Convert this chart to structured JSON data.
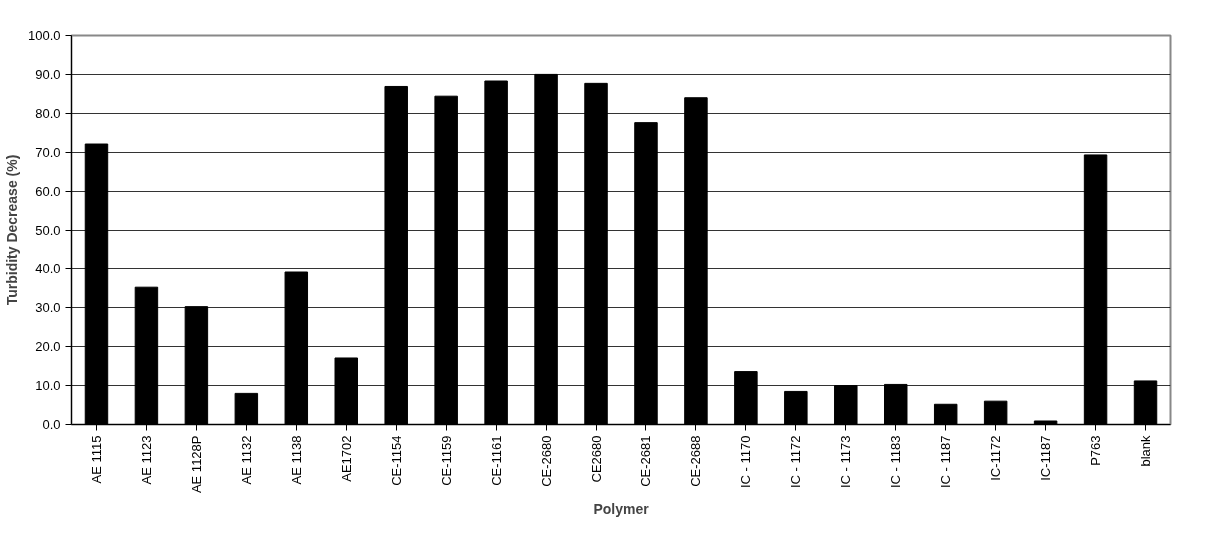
{
  "chart_data": {
    "type": "bar",
    "xlabel": "Polymer",
    "ylabel": "Turbidity Decrease (%)",
    "categories": [
      "AE 1115",
      "AE 1123",
      "AE 1128P",
      "AE 1132",
      "AE 1138",
      "AE1702",
      "CE-1154",
      "CE-1159",
      "CE-1161",
      "CE-2680",
      "CE2680",
      "CE-2681",
      "CE-2688",
      "IC - 1170",
      "IC - 1172",
      "IC - 1173",
      "IC - 1183",
      "IC - 1187",
      "IC-1172",
      "IC-1187",
      "P763",
      "blank"
    ],
    "values": [
      72.1,
      35.3,
      30.3,
      8.0,
      39.2,
      17.1,
      86.9,
      84.4,
      88.3,
      90.0,
      87.7,
      77.6,
      84.0,
      13.6,
      8.5,
      10.0,
      10.3,
      5.2,
      6.0,
      0.9,
      69.3,
      11.2
    ],
    "color": "#000000",
    "ylim": [
      0,
      100
    ],
    "yticks": [
      {
        "value": 0,
        "label": "0.0"
      },
      {
        "value": 10,
        "label": "10.0"
      },
      {
        "value": 20,
        "label": "20.0"
      },
      {
        "value": 30,
        "label": "30.0"
      },
      {
        "value": 40,
        "label": "40.0"
      },
      {
        "value": 50,
        "label": "50.0"
      },
      {
        "value": 60,
        "label": "60.0"
      },
      {
        "value": 70,
        "label": "70.0"
      },
      {
        "value": 80,
        "label": "80.0"
      },
      {
        "value": 90,
        "label": "90.0"
      },
      {
        "value": 100,
        "label": "100.0"
      }
    ],
    "grid": "y"
  }
}
